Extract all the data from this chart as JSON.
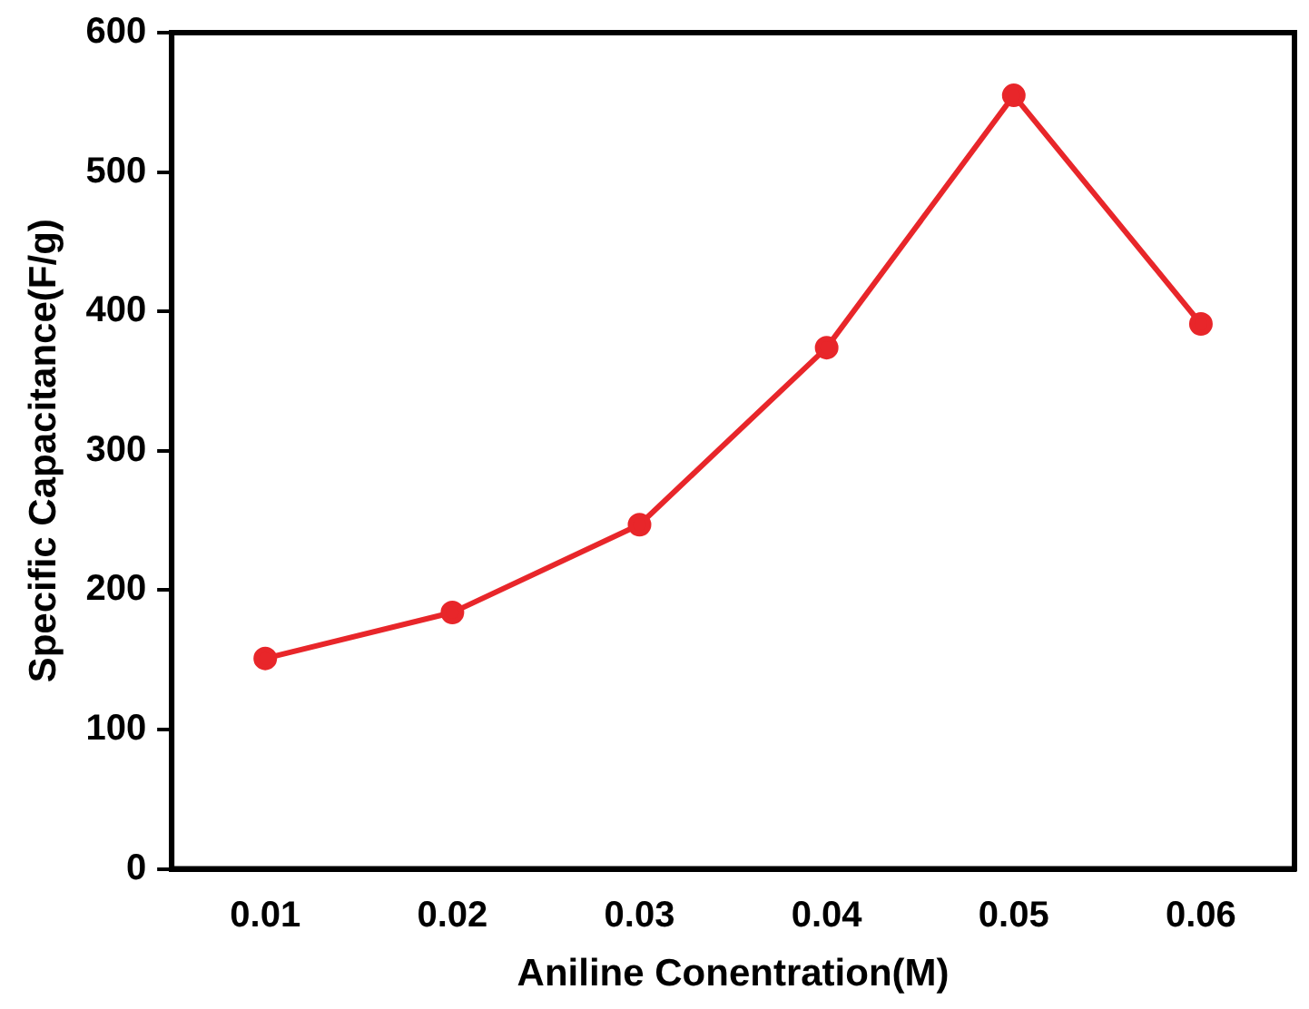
{
  "chart_data": {
    "type": "line",
    "xlabel": "Aniline Conentration(M)",
    "ylabel": "Specific Capacitance(F/g)",
    "x": [
      0.01,
      0.02,
      0.03,
      0.04,
      0.05,
      0.06
    ],
    "series": [
      {
        "color": "#e8262a",
        "values": [
          151,
          184,
          247,
          374,
          555,
          391
        ]
      }
    ],
    "xlim": [
      0.005,
      0.065
    ],
    "xticks": [
      0.01,
      0.02,
      0.03,
      0.04,
      0.05,
      0.06
    ],
    "ylim": [
      0,
      600
    ],
    "yticks": [
      0,
      100,
      200,
      300,
      400,
      500,
      600
    ],
    "grid": false,
    "legend": false,
    "marker": "circle",
    "line_style": "solid"
  }
}
